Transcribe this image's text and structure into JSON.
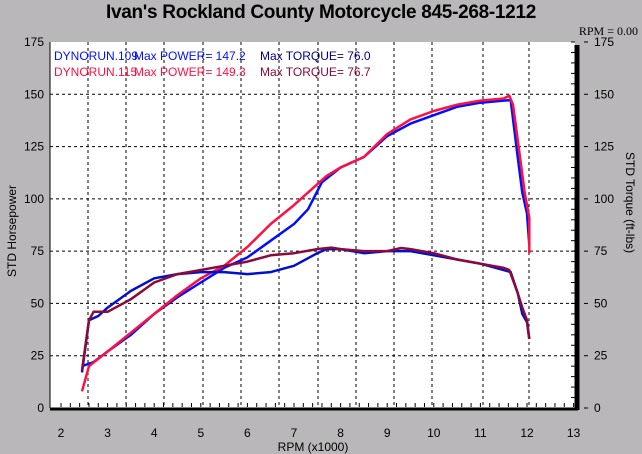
{
  "title": "Ivan's Rockland County Motorcycle  845-268-1212",
  "rpm_readout": "RPM = 0.00",
  "chart_data": {
    "type": "line",
    "title": "Ivan's Rockland County Motorcycle  845-268-1212",
    "xlabel": "RPM (x1000)",
    "ylabel": "STD Horsepower",
    "y2label": "STD Torque (ft-lbs)",
    "xlim": [
      2,
      13
    ],
    "ylim": [
      0,
      175
    ],
    "y2lim": [
      0,
      175
    ],
    "xticks": [
      "2",
      "3",
      "4",
      "5",
      "6",
      "7",
      "8",
      "9",
      "10",
      "11",
      "12",
      "13"
    ],
    "yticks": [
      "0",
      "25",
      "50",
      "75",
      "100",
      "125",
      "150",
      "175"
    ],
    "grid": true,
    "legend": [
      {
        "run": "DYNORUN.109",
        "power_label": "Max POWER=",
        "power": "147.2",
        "torque_label": "Max TORQUE=",
        "torque": "76.0",
        "color": "#0010ff",
        "torque_color": "#00008b"
      },
      {
        "run": "DYNORUN.115",
        "power_label": "Max POWER=",
        "power": "149.3",
        "torque_label": "Max TORQUE=",
        "torque": "76.7",
        "color": "#ff1040",
        "torque_color": "#8b0a3a"
      }
    ],
    "series": [
      {
        "name": "DYNORUN.109 Power",
        "color": "#0010ff",
        "x": [
          2.45,
          2.7,
          3,
          3.5,
          4,
          4.5,
          5,
          5.5,
          6,
          6.5,
          7,
          7.3,
          7.6,
          8,
          8.5,
          9,
          9.5,
          10,
          10.5,
          11,
          11.5,
          11.65,
          11.8,
          11.9,
          12,
          12.05
        ],
        "y": [
          20,
          22,
          27,
          35,
          45,
          53,
          60,
          67,
          72,
          80,
          88,
          95,
          108,
          115,
          120,
          130,
          136,
          140,
          144,
          146,
          147,
          147.2,
          120,
          103,
          93,
          78
        ]
      },
      {
        "name": "DYNORUN.115 Power",
        "color": "#ff1040",
        "x": [
          2.45,
          2.6,
          3,
          3.5,
          4,
          4.5,
          5,
          5.5,
          6,
          6.5,
          7,
          7.5,
          7.7,
          8,
          8.5,
          9,
          9.5,
          10,
          10.5,
          11,
          11.5,
          11.62,
          11.7,
          11.85,
          11.95,
          12.05,
          12.05
        ],
        "y": [
          8,
          20,
          27,
          36,
          45,
          54,
          62,
          68,
          77,
          88,
          97,
          107,
          111,
          115,
          120,
          131,
          138,
          142,
          145,
          147,
          148,
          149.3,
          145,
          120,
          103,
          91,
          74
        ]
      },
      {
        "name": "DYNORUN.109 Torque",
        "color": "#0010cc",
        "x": [
          2.45,
          2.6,
          2.8,
          3,
          3.5,
          4,
          4.5,
          5,
          5.5,
          6,
          6.5,
          7,
          7.5,
          7.7,
          8,
          8.5,
          9,
          9.5,
          10,
          10.5,
          11,
          11.5,
          11.65,
          11.8,
          11.9,
          12,
          12.05
        ],
        "y": [
          17,
          42,
          44,
          48,
          56,
          62,
          64,
          65,
          65,
          64,
          65,
          68,
          74,
          76,
          76,
          74,
          75,
          75,
          73,
          71,
          69,
          66,
          65,
          55,
          45,
          41,
          33
        ]
      },
      {
        "name": "DYNORUN.115 Torque",
        "color": "#8b0a3a",
        "x": [
          2.45,
          2.6,
          2.7,
          3,
          3.5,
          4,
          4.5,
          5,
          5.5,
          6,
          6.5,
          7,
          7.5,
          7.8,
          8,
          8.5,
          9,
          9.3,
          9.5,
          10,
          10.5,
          11,
          11.5,
          11.62,
          11.8,
          11.9,
          12,
          12.05
        ],
        "y": [
          18,
          42,
          46,
          46,
          52,
          60,
          64,
          66,
          68,
          70,
          73,
          74,
          76,
          76.7,
          76,
          75,
          75,
          76.5,
          76,
          74,
          71,
          69,
          67,
          66,
          55,
          48,
          42,
          33
        ]
      }
    ]
  }
}
